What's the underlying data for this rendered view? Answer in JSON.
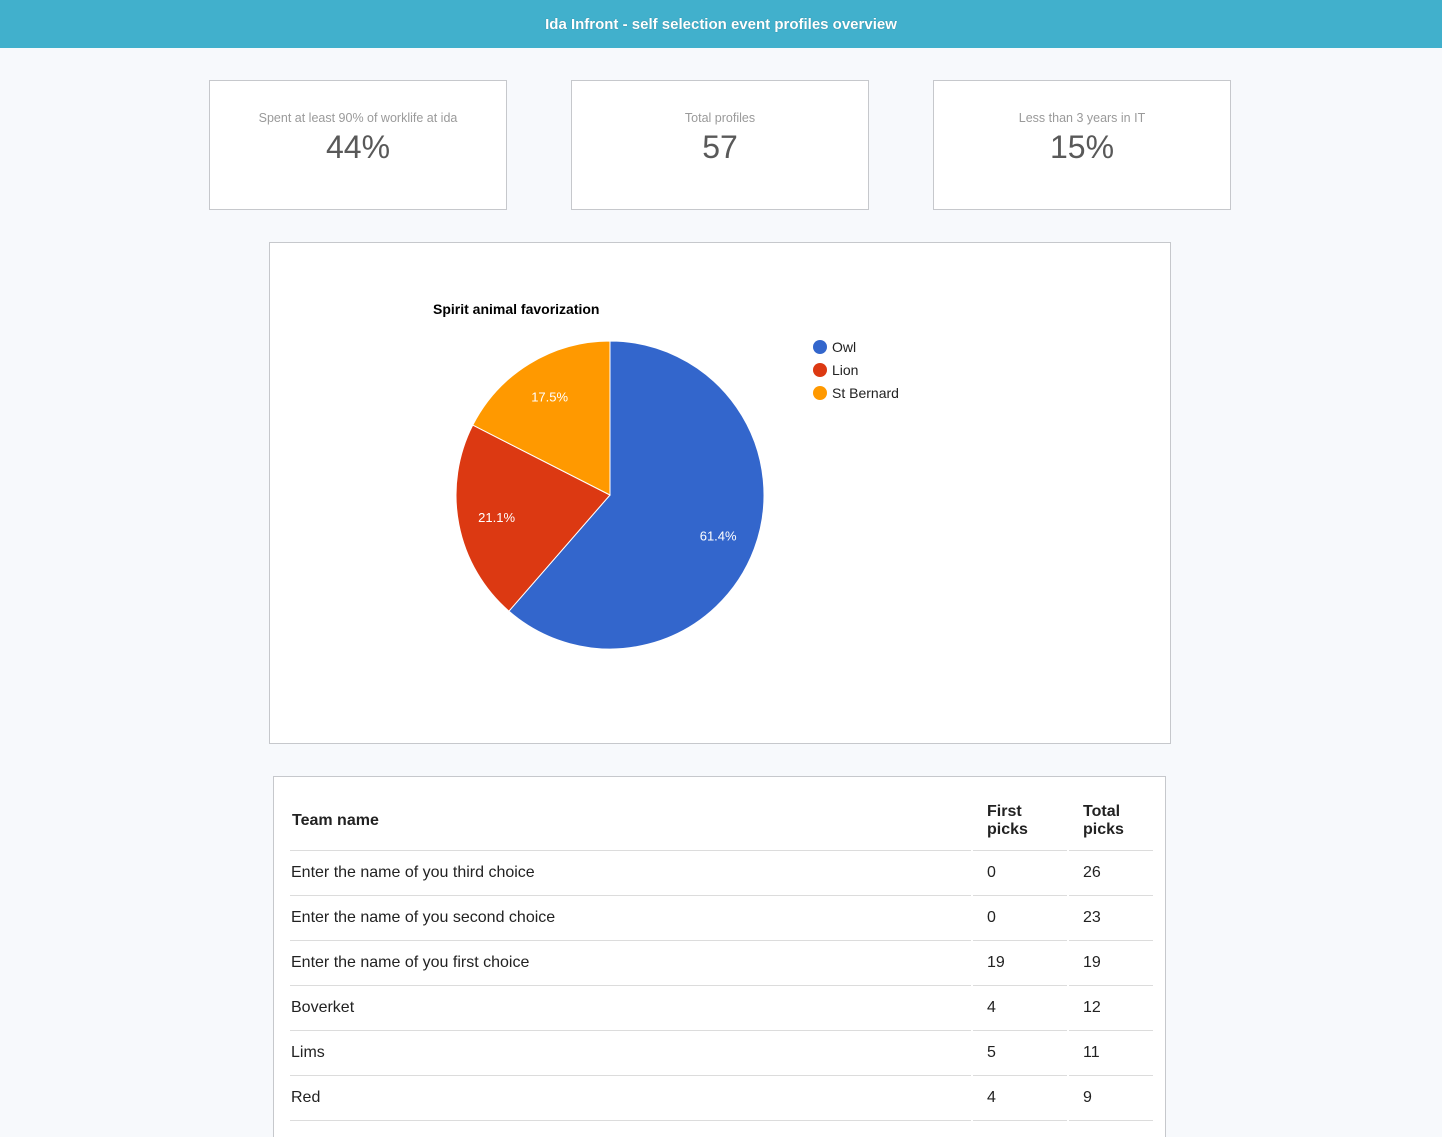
{
  "header": {
    "title": "Ida Infront - self selection event profiles overview"
  },
  "stats": [
    {
      "label": "Spent at least 90% of worklife at ida",
      "value": "44%"
    },
    {
      "label": "Total profiles",
      "value": "57"
    },
    {
      "label": "Less than 3 years in IT",
      "value": "15%"
    }
  ],
  "chart_data": {
    "type": "pie",
    "title": "Spirit animal favorization",
    "categories": [
      "Owl",
      "Lion",
      "St Bernard"
    ],
    "values": [
      61.4,
      21.1,
      17.5
    ],
    "labels": [
      "61.4%",
      "21.1%",
      "17.5%"
    ],
    "colors": [
      "#3366cc",
      "#dc3912",
      "#ff9900"
    ],
    "legend": "right"
  },
  "table": {
    "headers": [
      "Team name",
      "First picks",
      "Total picks"
    ],
    "rows": [
      {
        "name": "Enter the name of you third choice",
        "first": "0",
        "total": "26"
      },
      {
        "name": "Enter the name of you second choice",
        "first": "0",
        "total": "23"
      },
      {
        "name": "Enter the name of you first choice",
        "first": "19",
        "total": "19"
      },
      {
        "name": "Boverket",
        "first": "4",
        "total": "12"
      },
      {
        "name": "Lims",
        "first": "5",
        "total": "11"
      },
      {
        "name": "Red",
        "first": "4",
        "total": "9"
      }
    ]
  }
}
